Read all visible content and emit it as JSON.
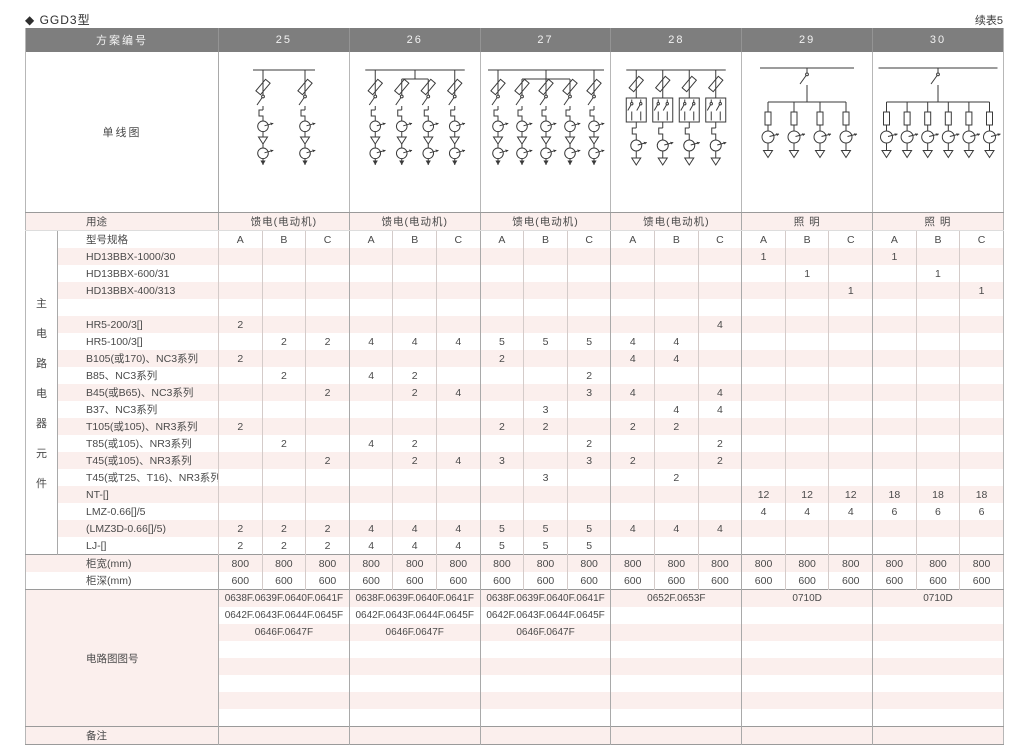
{
  "page": {
    "title": "◆ GGD3型",
    "continuation": "续表5"
  },
  "colors": {
    "header_bg": "#7e7e7e",
    "stripe_pink": "#fbefed",
    "border_major": "#a9a9a9",
    "border_minor": "#d4cbc9",
    "text": "#4a4a4a"
  },
  "table": {
    "scheme_header_label": "方案编号",
    "schemes": [
      "25",
      "26",
      "27",
      "28",
      "29",
      "30"
    ],
    "diagram_row_label": "单线图",
    "usage_row_label": "用途",
    "usages": [
      "馈电(电动机)",
      "馈电(电动机)",
      "馈电(电动机)",
      "馈电(电动机)",
      "照 明",
      "照 明"
    ],
    "spec_row_label": "型号规格",
    "subcols": [
      "A",
      "B",
      "C"
    ],
    "group_label": "主电路电器元件",
    "component_rows": [
      {
        "name": "HD13BBX-1000/30",
        "values": [
          "",
          "",
          "",
          "",
          "",
          "",
          "",
          "",
          "",
          "",
          "",
          "",
          "1",
          "",
          "",
          "1",
          "",
          ""
        ]
      },
      {
        "name": "HD13BBX-600/31",
        "values": [
          "",
          "",
          "",
          "",
          "",
          "",
          "",
          "",
          "",
          "",
          "",
          "",
          "",
          "1",
          "",
          "",
          "1",
          ""
        ]
      },
      {
        "name": "HD13BBX-400/313",
        "values": [
          "",
          "",
          "",
          "",
          "",
          "",
          "",
          "",
          "",
          "",
          "",
          "",
          "",
          "",
          "1",
          "",
          "",
          "1"
        ]
      },
      {
        "name": "",
        "values": [
          "",
          "",
          "",
          "",
          "",
          "",
          "",
          "",
          "",
          "",
          "",
          "",
          "",
          "",
          "",
          "",
          "",
          ""
        ]
      },
      {
        "name": "HR5-200/3[]",
        "values": [
          "2",
          "",
          "",
          "",
          "",
          "",
          "",
          "",
          "",
          "",
          "",
          "4",
          "",
          "",
          "",
          "",
          "",
          ""
        ]
      },
      {
        "name": "HR5-100/3[]",
        "values": [
          "",
          "2",
          "2",
          "4",
          "4",
          "4",
          "5",
          "5",
          "5",
          "4",
          "4",
          "",
          "",
          "",
          "",
          "",
          "",
          ""
        ]
      },
      {
        "name": "B105(或170)、NC3系列",
        "values": [
          "2",
          "",
          "",
          "",
          "",
          "",
          "2",
          "",
          "",
          "4",
          "4",
          "",
          "",
          "",
          "",
          "",
          "",
          ""
        ]
      },
      {
        "name": "B85、NC3系列",
        "values": [
          "",
          "2",
          "",
          "4",
          "2",
          "",
          "",
          "",
          "2",
          "",
          "",
          "",
          "",
          "",
          "",
          "",
          "",
          ""
        ]
      },
      {
        "name": "B45(或B65)、NC3系列",
        "values": [
          "",
          "",
          "2",
          "",
          "2",
          "4",
          "",
          "",
          "3",
          "4",
          "",
          "4",
          "",
          "",
          "",
          "",
          "",
          ""
        ]
      },
      {
        "name": "B37、NC3系列",
        "values": [
          "",
          "",
          "",
          "",
          "",
          "",
          "",
          "3",
          "",
          "",
          "4",
          "4",
          "",
          "",
          "",
          "",
          "",
          ""
        ]
      },
      {
        "name": "T105(或105)、NR3系列",
        "values": [
          "2",
          "",
          "",
          "",
          "",
          "",
          "2",
          "2",
          "",
          "2",
          "2",
          "",
          "",
          "",
          "",
          "",
          "",
          ""
        ]
      },
      {
        "name": "T85(或105)、NR3系列",
        "values": [
          "",
          "2",
          "",
          "4",
          "2",
          "",
          "",
          "",
          "2",
          "",
          "",
          "2",
          "",
          "",
          "",
          "",
          "",
          ""
        ]
      },
      {
        "name": "T45(或105)、NR3系列",
        "values": [
          "",
          "",
          "2",
          "",
          "2",
          "4",
          "3",
          "",
          "3",
          "2",
          "",
          "2",
          "",
          "",
          "",
          "",
          "",
          ""
        ]
      },
      {
        "name": "T45(或T25、T16)、NR3系列",
        "values": [
          "",
          "",
          "",
          "",
          "",
          "",
          "",
          "3",
          "",
          "",
          "2",
          "",
          "",
          "",
          "",
          "",
          "",
          ""
        ]
      },
      {
        "name": "NT-[]",
        "values": [
          "",
          "",
          "",
          "",
          "",
          "",
          "",
          "",
          "",
          "",
          "",
          "",
          "12",
          "12",
          "12",
          "18",
          "18",
          "18"
        ]
      },
      {
        "name": "LMZ-0.66[]/5",
        "values": [
          "",
          "",
          "",
          "",
          "",
          "",
          "",
          "",
          "",
          "",
          "",
          "",
          "4",
          "4",
          "4",
          "6",
          "6",
          "6"
        ]
      },
      {
        "name": "(LMZ3D-0.66[]/5)",
        "values": [
          "2",
          "2",
          "2",
          "4",
          "4",
          "4",
          "5",
          "5",
          "5",
          "4",
          "4",
          "4",
          "",
          "",
          "",
          "",
          "",
          ""
        ]
      },
      {
        "name": "LJ-[]",
        "values": [
          "2",
          "2",
          "2",
          "4",
          "4",
          "4",
          "5",
          "5",
          "5",
          "",
          "",
          "",
          "",
          "",
          "",
          "",
          "",
          ""
        ]
      }
    ],
    "width_row": {
      "label": "柜宽(mm)",
      "values": [
        "800",
        "800",
        "800",
        "800",
        "800",
        "800",
        "800",
        "800",
        "800",
        "800",
        "800",
        "800",
        "800",
        "800",
        "800",
        "800",
        "800",
        "800"
      ]
    },
    "depth_row": {
      "label": "柜深(mm)",
      "values": [
        "600",
        "600",
        "600",
        "600",
        "600",
        "600",
        "600",
        "600",
        "600",
        "600",
        "600",
        "600",
        "600",
        "600",
        "600",
        "600",
        "600",
        "600"
      ]
    },
    "diagram_numbers_label": "电路图图号",
    "diagram_number_rows": 8,
    "diagram_numbers": [
      [
        "0638F.0639F.0640F.0641F",
        "0642F.0643F.0644F.0645F",
        "0646F.0647F",
        "",
        "",
        "",
        "",
        ""
      ],
      [
        "0638F.0639F.0640F.0641F",
        "0642F.0643F.0644F.0645F",
        "0646F.0647F",
        "",
        "",
        "",
        "",
        ""
      ],
      [
        "0638F.0639F.0640F.0641F",
        "0642F.0643F.0644F.0645F",
        "0646F.0647F",
        "",
        "",
        "",
        "",
        ""
      ],
      [
        "0652F.0653F",
        "",
        "",
        "",
        "",
        "",
        "",
        ""
      ],
      [
        "0710D",
        "",
        "",
        "",
        "",
        "",
        "",
        ""
      ],
      [
        "0710D",
        "",
        "",
        "",
        "",
        "",
        "",
        ""
      ]
    ],
    "remarks_label": "备注",
    "diagrams": [
      {
        "name": "scheme-25-single-line-diagram",
        "kind": "feeder",
        "branches": 2,
        "grouped_branches": []
      },
      {
        "name": "scheme-26-single-line-diagram",
        "kind": "feeder",
        "branches": 4,
        "grouped_branches": [
          2,
          3
        ]
      },
      {
        "name": "scheme-27-single-line-diagram",
        "kind": "feeder",
        "branches": 5,
        "grouped_branches": [
          2,
          3,
          4
        ]
      },
      {
        "name": "scheme-28-single-line-diagram",
        "kind": "reversing",
        "branches": 4,
        "grouped_branches": []
      },
      {
        "name": "scheme-29-single-line-diagram",
        "kind": "lighting",
        "branches": 4,
        "grouped_branches": []
      },
      {
        "name": "scheme-30-single-line-diagram",
        "kind": "lighting",
        "branches": 6,
        "grouped_branches": []
      }
    ]
  }
}
